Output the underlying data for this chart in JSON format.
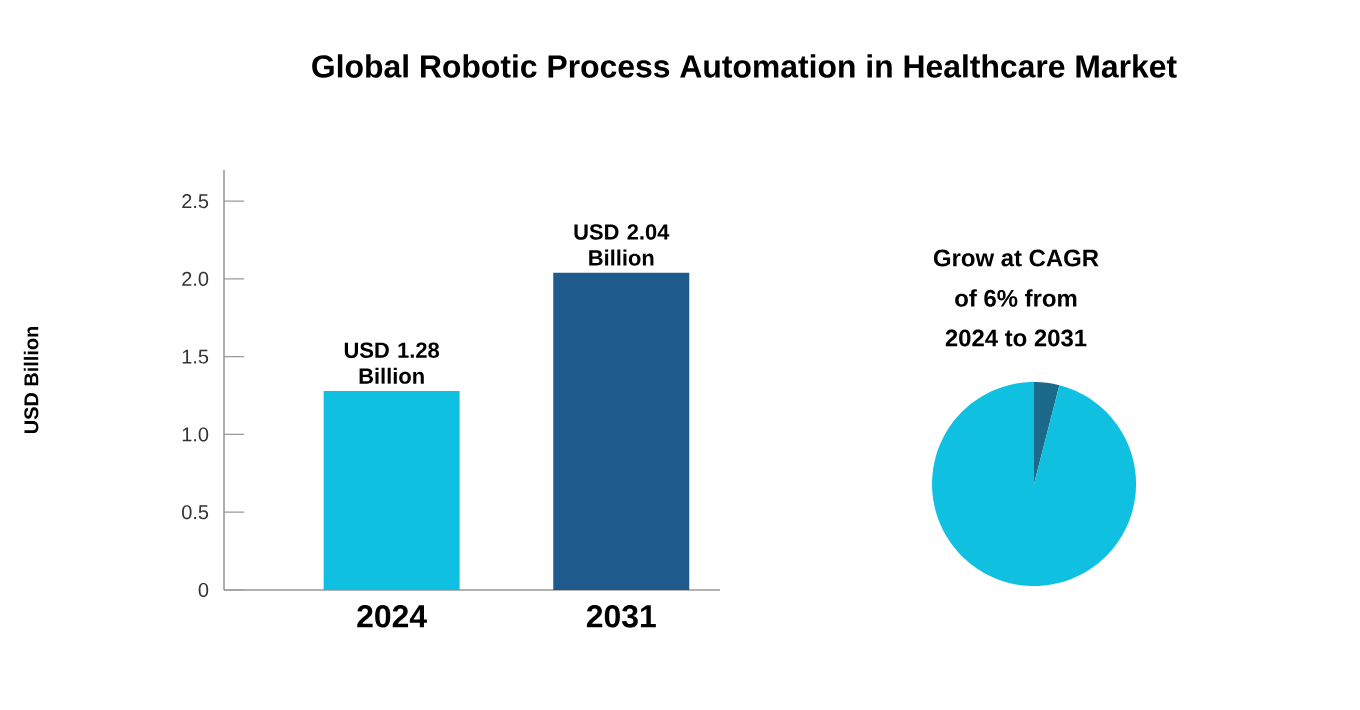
{
  "chart_data": [
    {
      "type": "bar",
      "title": "Global Robotic Process Automation in Healthcare Market",
      "ylabel": "USD Billion",
      "categories": [
        "2024",
        "2031"
      ],
      "values": [
        1.28,
        2.04
      ],
      "colors": [
        "#10c0e0",
        "#1e5a8c"
      ],
      "value_labels": [
        "USD 1.28 Billion",
        "USD 2.04 Billion"
      ],
      "ylim": [
        0,
        2.7
      ],
      "yticks": [
        0,
        0.5,
        {
          "value": 1,
          "label": "1.0"
        },
        1.5,
        {
          "value": 2,
          "label": "2.0"
        },
        2.5
      ]
    },
    {
      "type": "pie",
      "categories": [
        null,
        null
      ],
      "values": [
        4,
        96
      ],
      "colors": [
        "#1b6a8c",
        "#10c0e0"
      ],
      "annotations": [
        "Grow at CAGR",
        "of 6% from",
        "2024 to 2031"
      ]
    }
  ]
}
